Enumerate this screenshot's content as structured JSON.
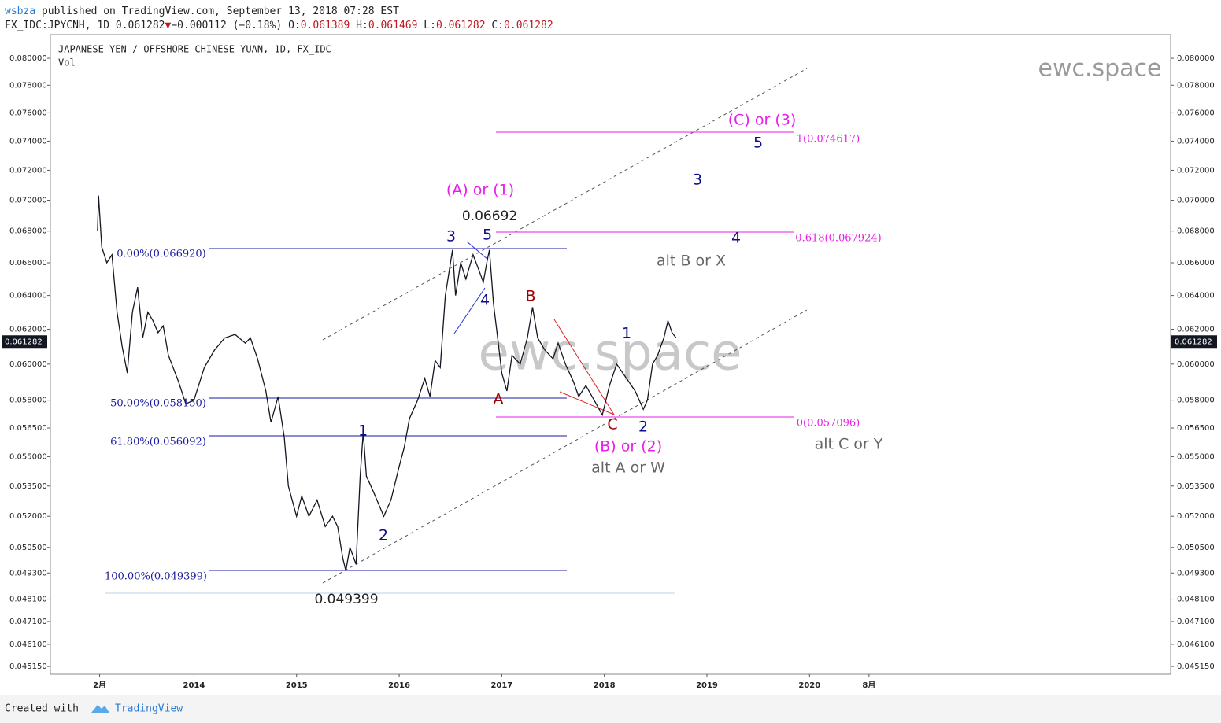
{
  "header": {
    "publisher": "wsbza",
    "published": "published on TradingView.com, September 13, 2018 07:28 EST",
    "symbol": "FX_IDC:JPYCNH, 1D",
    "last": "0.061282",
    "arrow": "▼",
    "change": "−0.000112 (−0.18%)",
    "open_label": "O:",
    "open": "0.061389",
    "high_label": "H:",
    "high": "0.061469",
    "low_label": "L:",
    "low": "0.061282",
    "close_label": "C:",
    "close": "0.061282"
  },
  "fib_labels": [
    "0.00%(0.066920)",
    "50.00%(0.058150)",
    "61.80%(0.056092)",
    "100.00%(0.049399)"
  ],
  "ext_labels": [
    "1(0.074617)",
    "0.618(0.067924)",
    "0(0.057096)"
  ],
  "annotations": [
    "(A) or (1)",
    "0.06692",
    "3",
    "5",
    "4",
    "B",
    "A",
    "C",
    "1",
    "2",
    "(B) or (2)",
    "alt A or W",
    "alt B or X",
    "alt C or Y",
    "(C) or (3)",
    "5",
    "3",
    "4",
    "1",
    "2",
    "0.049399"
  ],
  "footer": {
    "created": "Created with",
    "brand": "TradingView"
  },
  "chart_data": {
    "type": "line",
    "title": "JAPANESE YEN / OFFSHORE CHINESE YUAN, 1D, FX_IDC",
    "indicator": "Vol",
    "watermark": "ewc.space",
    "log_y": true,
    "grid": false,
    "last_price": 0.061282,
    "xlim": [
      2012.6,
      2023.52
    ],
    "xticks": [
      {
        "value": 2013.08,
        "label": "2月"
      },
      2014,
      2015,
      2016,
      2017,
      2018,
      2019,
      2020,
      {
        "value": 2020.58,
        "label": "8月"
      }
    ],
    "ylim": [
      0.04482,
      0.0818
    ],
    "yticks": [
      {
        "value": 0.08,
        "label": "0.080000"
      },
      {
        "value": 0.078,
        "label": "0.078000"
      },
      {
        "value": 0.076,
        "label": "0.076000"
      },
      {
        "value": 0.074,
        "label": "0.074000"
      },
      {
        "value": 0.072,
        "label": "0.072000"
      },
      {
        "value": 0.07,
        "label": "0.070000"
      },
      {
        "value": 0.068,
        "label": "0.068000"
      },
      {
        "value": 0.066,
        "label": "0.066000"
      },
      {
        "value": 0.064,
        "label": "0.064000"
      },
      {
        "value": 0.062,
        "label": "0.062000"
      },
      {
        "value": 0.06,
        "label": "0.060000"
      },
      {
        "value": 0.058,
        "label": "0.058000"
      },
      {
        "value": 0.0565,
        "label": "0.056500"
      },
      {
        "value": 0.055,
        "label": "0.055000"
      },
      {
        "value": 0.0535,
        "label": "0.053500"
      },
      {
        "value": 0.052,
        "label": "0.052000"
      },
      {
        "value": 0.0505,
        "label": "0.050500"
      },
      {
        "value": 0.0493,
        "label": "0.049300"
      },
      {
        "value": 0.0481,
        "label": "0.048100"
      },
      {
        "value": 0.0471,
        "label": "0.047100"
      },
      {
        "value": 0.0461,
        "label": "0.046100"
      },
      {
        "value": 0.04515,
        "label": "0.045150"
      }
    ],
    "x": [
      2013.06,
      2013.07,
      2013.1,
      2013.15,
      2013.2,
      2013.25,
      2013.3,
      2013.35,
      2013.4,
      2013.45,
      2013.5,
      2013.55,
      2013.6,
      2013.65,
      2013.7,
      2013.75,
      2013.85,
      2013.92,
      2014.0,
      2014.1,
      2014.2,
      2014.3,
      2014.4,
      2014.5,
      2014.55,
      2014.62,
      2014.7,
      2014.75,
      2014.82,
      2014.88,
      2014.92,
      2015.0,
      2015.05,
      2015.12,
      2015.2,
      2015.28,
      2015.35,
      2015.4,
      2015.45,
      2015.48,
      2015.52,
      2015.58,
      2015.62,
      2015.65,
      2015.68,
      2015.75,
      2015.85,
      2015.92,
      2016.0,
      2016.05,
      2016.1,
      2016.18,
      2016.25,
      2016.3,
      2016.35,
      2016.4,
      2016.45,
      2016.52,
      2016.55,
      2016.6,
      2016.65,
      2016.72,
      2016.78,
      2016.82,
      2016.86,
      2016.88,
      2016.92,
      2016.97,
      2017.0,
      2017.05,
      2017.1,
      2017.18,
      2017.25,
      2017.3,
      2017.35,
      2017.42,
      2017.5,
      2017.55,
      2017.62,
      2017.7,
      2017.75,
      2017.82,
      2017.9,
      2017.98,
      2018.05,
      2018.12,
      2018.18,
      2018.24,
      2018.3,
      2018.38,
      2018.42,
      2018.47,
      2018.52,
      2018.58,
      2018.62,
      2018.66,
      2018.7
    ],
    "series": [
      {
        "color": "#131722",
        "values": [
          0.068,
          0.0703,
          0.067,
          0.066,
          0.0665,
          0.063,
          0.061,
          0.0595,
          0.063,
          0.0645,
          0.0615,
          0.063,
          0.0625,
          0.0618,
          0.0622,
          0.0605,
          0.059,
          0.0578,
          0.058,
          0.0598,
          0.0608,
          0.0615,
          0.0617,
          0.0612,
          0.0615,
          0.0603,
          0.0585,
          0.0568,
          0.0582,
          0.056,
          0.0535,
          0.052,
          0.053,
          0.052,
          0.0528,
          0.0515,
          0.052,
          0.0515,
          0.05,
          0.0494,
          0.0505,
          0.0497,
          0.054,
          0.0563,
          0.054,
          0.0532,
          0.052,
          0.0528,
          0.0545,
          0.0555,
          0.057,
          0.058,
          0.0592,
          0.0582,
          0.0602,
          0.0598,
          0.064,
          0.0668,
          0.064,
          0.066,
          0.065,
          0.0665,
          0.0655,
          0.0648,
          0.0662,
          0.0668,
          0.0635,
          0.061,
          0.0595,
          0.0585,
          0.0605,
          0.06,
          0.0615,
          0.0633,
          0.0615,
          0.0608,
          0.0603,
          0.0612,
          0.06,
          0.059,
          0.0582,
          0.0588,
          0.058,
          0.0572,
          0.0588,
          0.06,
          0.0595,
          0.059,
          0.0585,
          0.0575,
          0.058,
          0.06,
          0.0605,
          0.0615,
          0.0625,
          0.0618,
          0.0615
        ]
      }
    ]
  }
}
